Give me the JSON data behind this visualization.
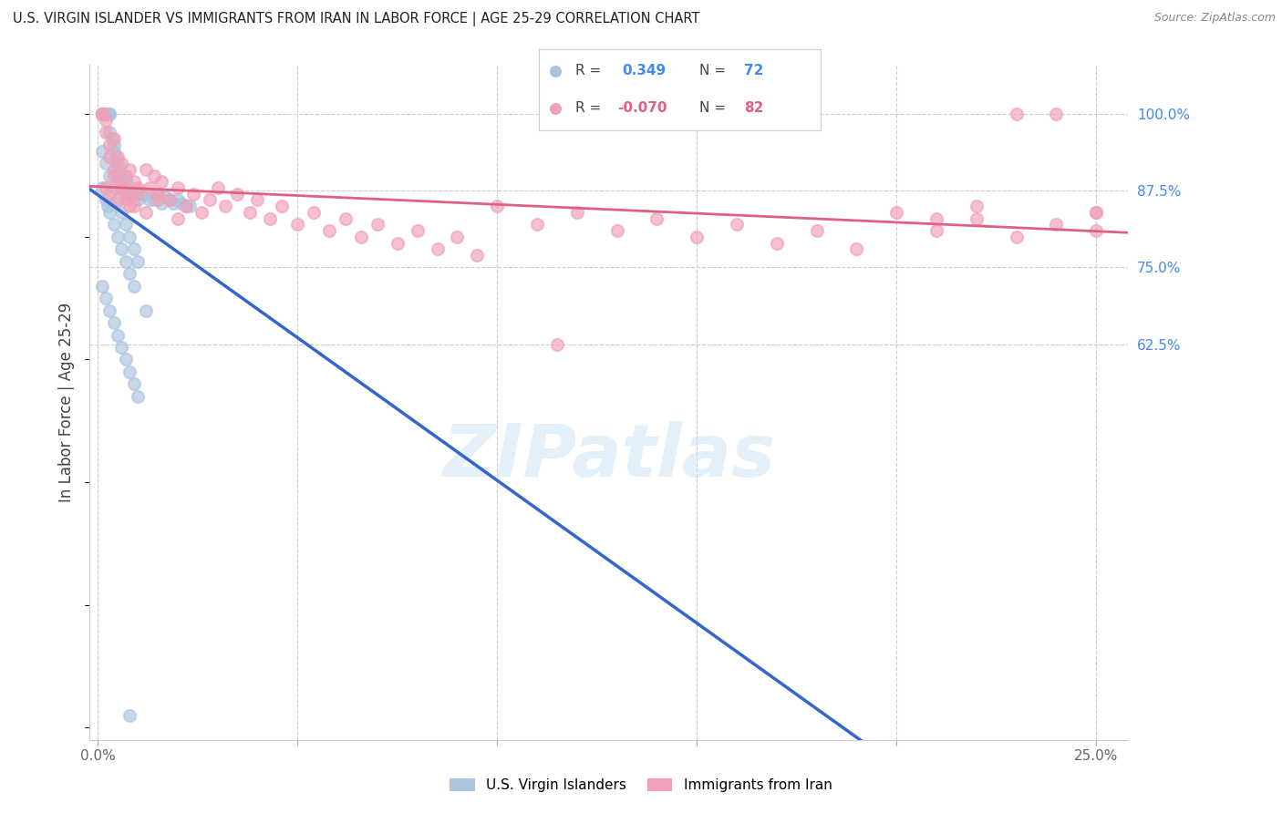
{
  "title": "U.S. VIRGIN ISLANDER VS IMMIGRANTS FROM IRAN IN LABOR FORCE | AGE 25-29 CORRELATION CHART",
  "source": "Source: ZipAtlas.com",
  "ylabel": "In Labor Force | Age 25-29",
  "blue_R": 0.349,
  "blue_N": 72,
  "pink_R": -0.07,
  "pink_N": 82,
  "blue_color": "#aac4e0",
  "pink_color": "#f0a0b8",
  "blue_line_color": "#3366cc",
  "pink_line_color": "#e06080",
  "watermark_text": "ZIPatlas",
  "xlim_min": -0.002,
  "xlim_max": 0.258,
  "ylim_min": -0.02,
  "ylim_max": 1.08,
  "ytick_positions": [
    0.625,
    0.75,
    0.875,
    1.0
  ],
  "ytick_labels": [
    "62.5%",
    "75.0%",
    "87.5%",
    "100.0%"
  ],
  "xtick_positions": [
    0.0,
    0.05,
    0.1,
    0.15,
    0.2,
    0.25
  ],
  "xtick_labels": [
    "0.0%",
    "",
    "",
    "",
    "",
    "25.0%"
  ],
  "grid_yticks": [
    0.625,
    0.75,
    0.875,
    1.0
  ],
  "blue_x": [
    0.001,
    0.001,
    0.001,
    0.0015,
    0.002,
    0.002,
    0.002,
    0.0025,
    0.003,
    0.003,
    0.003,
    0.0035,
    0.004,
    0.004,
    0.0045,
    0.005,
    0.005,
    0.0055,
    0.006,
    0.006,
    0.007,
    0.007,
    0.008,
    0.008,
    0.009,
    0.01,
    0.01,
    0.011,
    0.012,
    0.013,
    0.014,
    0.015,
    0.016,
    0.017,
    0.018,
    0.019,
    0.02,
    0.021,
    0.022,
    0.023,
    0.001,
    0.002,
    0.003,
    0.004,
    0.005,
    0.006,
    0.007,
    0.008,
    0.009,
    0.01,
    0.001,
    0.002,
    0.0025,
    0.003,
    0.004,
    0.005,
    0.006,
    0.007,
    0.008,
    0.009,
    0.001,
    0.002,
    0.003,
    0.004,
    0.005,
    0.006,
    0.007,
    0.008,
    0.009,
    0.01,
    0.012,
    0.008
  ],
  "blue_y": [
    1.0,
    1.0,
    1.0,
    1.0,
    1.0,
    1.0,
    1.0,
    1.0,
    1.0,
    1.0,
    0.97,
    0.96,
    0.95,
    0.94,
    0.93,
    0.92,
    0.91,
    0.9,
    0.895,
    0.88,
    0.89,
    0.87,
    0.875,
    0.865,
    0.87,
    0.875,
    0.86,
    0.87,
    0.87,
    0.86,
    0.86,
    0.87,
    0.855,
    0.865,
    0.86,
    0.855,
    0.86,
    0.855,
    0.85,
    0.85,
    0.94,
    0.92,
    0.9,
    0.88,
    0.86,
    0.84,
    0.82,
    0.8,
    0.78,
    0.76,
    0.88,
    0.86,
    0.85,
    0.84,
    0.82,
    0.8,
    0.78,
    0.76,
    0.74,
    0.72,
    0.72,
    0.7,
    0.68,
    0.66,
    0.64,
    0.62,
    0.6,
    0.58,
    0.56,
    0.54,
    0.68,
    0.02
  ],
  "pink_x": [
    0.001,
    0.001,
    0.001,
    0.002,
    0.002,
    0.003,
    0.003,
    0.004,
    0.004,
    0.005,
    0.005,
    0.006,
    0.006,
    0.007,
    0.007,
    0.008,
    0.008,
    0.009,
    0.009,
    0.01,
    0.012,
    0.013,
    0.014,
    0.015,
    0.016,
    0.018,
    0.02,
    0.022,
    0.024,
    0.026,
    0.028,
    0.03,
    0.032,
    0.035,
    0.038,
    0.04,
    0.043,
    0.046,
    0.05,
    0.054,
    0.058,
    0.062,
    0.066,
    0.07,
    0.075,
    0.08,
    0.085,
    0.09,
    0.095,
    0.1,
    0.11,
    0.12,
    0.13,
    0.14,
    0.15,
    0.16,
    0.17,
    0.18,
    0.19,
    0.2,
    0.21,
    0.22,
    0.23,
    0.24,
    0.25,
    0.25,
    0.24,
    0.23,
    0.22,
    0.21,
    0.002,
    0.003,
    0.004,
    0.005,
    0.006,
    0.008,
    0.01,
    0.012,
    0.015,
    0.02,
    0.115,
    0.25
  ],
  "pink_y": [
    1.0,
    1.0,
    1.0,
    0.99,
    0.97,
    0.95,
    0.93,
    0.96,
    0.91,
    0.93,
    0.89,
    0.92,
    0.88,
    0.9,
    0.86,
    0.91,
    0.87,
    0.89,
    0.85,
    0.88,
    0.91,
    0.88,
    0.9,
    0.87,
    0.89,
    0.86,
    0.88,
    0.85,
    0.87,
    0.84,
    0.86,
    0.88,
    0.85,
    0.87,
    0.84,
    0.86,
    0.83,
    0.85,
    0.82,
    0.84,
    0.81,
    0.83,
    0.8,
    0.82,
    0.79,
    0.81,
    0.78,
    0.8,
    0.77,
    0.85,
    0.82,
    0.84,
    0.81,
    0.83,
    0.8,
    0.82,
    0.79,
    0.81,
    0.78,
    0.84,
    0.81,
    0.83,
    0.8,
    0.82,
    0.84,
    0.81,
    1.0,
    1.0,
    0.85,
    0.83,
    0.88,
    0.87,
    0.9,
    0.86,
    0.88,
    0.85,
    0.87,
    0.84,
    0.86,
    0.83,
    0.625,
    0.84
  ]
}
